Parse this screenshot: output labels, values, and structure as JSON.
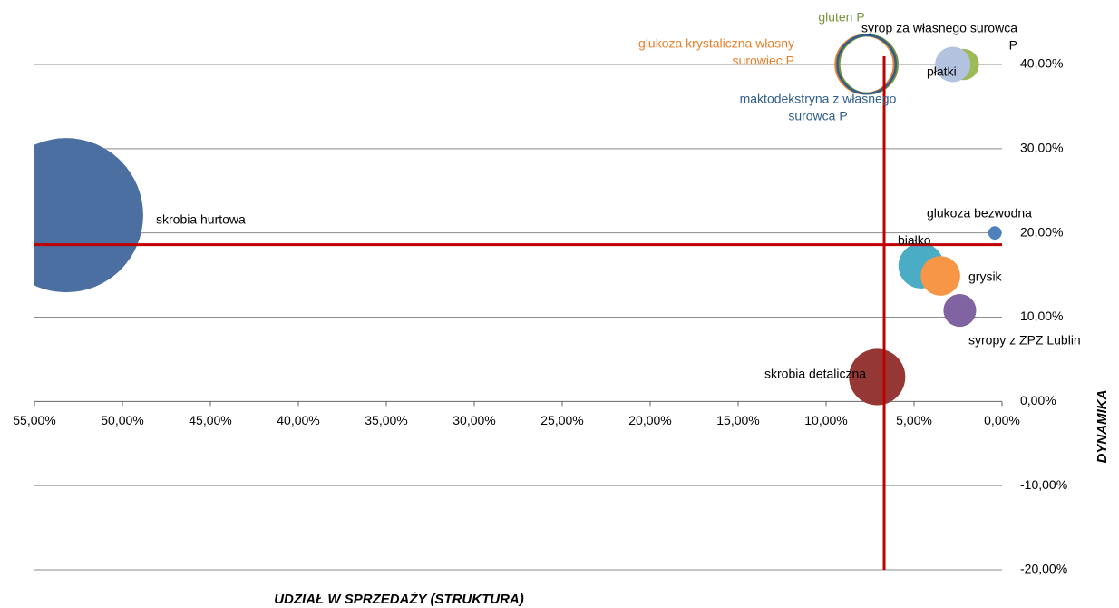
{
  "chart_data": {
    "type": "bubble",
    "x_label": "UDZIAŁ W SPRZEDAŻY (STRUKTURA)",
    "y_label": "DYNAMIKA",
    "xlim": [
      55,
      0
    ],
    "xticks": [
      {
        "value": 55,
        "label": "55,00%"
      },
      {
        "value": 50,
        "label": "50,00%"
      },
      {
        "value": 45,
        "label": "45,00%"
      },
      {
        "value": 40,
        "label": "40,00%"
      },
      {
        "value": 35,
        "label": "35,00%"
      },
      {
        "value": 30,
        "label": "30,00%"
      },
      {
        "value": 25,
        "label": "25,00%"
      },
      {
        "value": 20,
        "label": "20,00%"
      },
      {
        "value": 15,
        "label": "15,00%"
      },
      {
        "value": 10,
        "label": "10,00%"
      },
      {
        "value": 5,
        "label": "5,00%"
      },
      {
        "value": 0,
        "label": "0,00%"
      }
    ],
    "ylim": [
      -20,
      47.65
    ],
    "yticks": [
      {
        "value": -20,
        "label": "-20,00%"
      },
      {
        "value": -10,
        "label": "-10,00%"
      },
      {
        "value": 0,
        "label": "0,00%"
      },
      {
        "value": 10,
        "label": "10,00%"
      },
      {
        "value": 20,
        "label": "20,00%"
      },
      {
        "value": 30,
        "label": "30,00%"
      },
      {
        "value": 40,
        "label": "40,00%"
      }
    ],
    "grid": true,
    "reference_lines": {
      "x": 6.7,
      "y": 18.6,
      "color": "#c00000"
    },
    "series": [
      {
        "name": [
          "skrobia hurtowa"
        ],
        "color": "#4a6fa0",
        "x": [
          53.2
        ],
        "values": [
          22.1
        ],
        "sizes": [
          53.2
        ]
      },
      {
        "name": [
          "skrobia detaliczna"
        ],
        "color": "#953735",
        "x": [
          7.1
        ],
        "values": [
          2.9
        ],
        "sizes": [
          7.1
        ]
      },
      {
        "name": [
          "białko"
        ],
        "color": "#4bacc6",
        "x": [
          4.6
        ],
        "values": [
          16.1
        ],
        "sizes": [
          4.6
        ]
      },
      {
        "name": [
          "grysik"
        ],
        "color": "#f79646",
        "x": [
          3.5
        ],
        "values": [
          14.9
        ],
        "sizes": [
          3.5
        ]
      },
      {
        "name": [
          "syropy z ZPZ Lublin"
        ],
        "color": "#8064a2",
        "x": [
          2.4
        ],
        "values": [
          10.8
        ],
        "sizes": [
          2.4
        ]
      },
      {
        "name": [
          "glukoza  bezwodna"
        ],
        "color": "#4f81bd",
        "x": [
          0.4
        ],
        "values": [
          20.0
        ],
        "sizes": [
          0.4
        ]
      },
      {
        "name": [
          "płatki"
        ],
        "color": "#9bbb59",
        "x": [
          2.2
        ],
        "values": [
          40.0
        ],
        "sizes": [
          2.2
        ]
      },
      {
        "name": [
          "syrop za własnego surowca",
          "P"
        ],
        "color": "#b3c3df",
        "x": [
          2.8
        ],
        "values": [
          40.0
        ],
        "sizes": [
          2.8
        ]
      },
      {
        "name": [
          "gluten P"
        ],
        "color": "#77933c",
        "x": [
          7.6
        ],
        "values": [
          40.0
        ],
        "sizes": [
          7.6
        ],
        "outline": true
      },
      {
        "name": [
          "glukoza  krystaliczna własny",
          "surowiec P"
        ],
        "color": "#e8802c",
        "x": [
          7.8
        ],
        "values": [
          40.0
        ],
        "sizes": [
          7.6
        ],
        "outline": true
      },
      {
        "name": [
          "maktodekstryna z własnego",
          "surowca P"
        ],
        "color": "#2e5e8e",
        "x": [
          7.7
        ],
        "values": [
          40.0
        ],
        "sizes": [
          7.6
        ],
        "outline": true
      }
    ]
  }
}
